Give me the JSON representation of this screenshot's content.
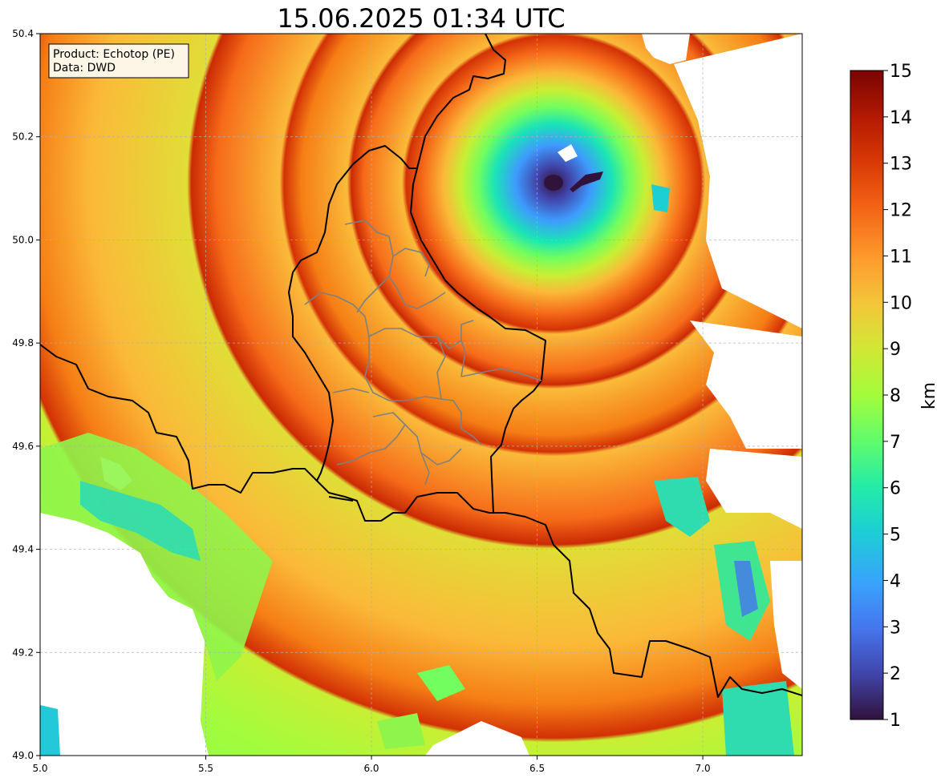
{
  "title": "15.06.2025 01:34 UTC",
  "info_box": {
    "product_line": "Product: Echotop (PE)",
    "data_line": "Data: DWD"
  },
  "map": {
    "lon_range": [
      5.0,
      7.3
    ],
    "lat_range": [
      49.0,
      50.4
    ],
    "x_ticks": [
      "5.0",
      "5.5",
      "6.0",
      "6.5",
      "7.0"
    ],
    "x_tick_values": [
      5.0,
      5.5,
      6.0,
      6.5,
      7.0
    ],
    "y_ticks": [
      "49.0",
      "49.2",
      "49.4",
      "49.6",
      "49.8",
      "50.0",
      "50.2",
      "50.4"
    ],
    "y_tick_values": [
      49.0,
      49.2,
      49.4,
      49.6,
      49.8,
      50.0,
      50.2,
      50.4
    ],
    "grid": "dashed gray",
    "radar_center": {
      "lon": 6.55,
      "lat": 50.11
    },
    "colormap": "turbo",
    "background_color": "#ffffff",
    "border_color": "#000000",
    "district_color": "#808080"
  },
  "colorbar": {
    "label": "km",
    "min": 1,
    "max": 15,
    "ticks": [
      "1",
      "2",
      "3",
      "4",
      "5",
      "6",
      "7",
      "8",
      "9",
      "10",
      "11",
      "12",
      "13",
      "14",
      "15"
    ],
    "tick_values": [
      1,
      2,
      3,
      4,
      5,
      6,
      7,
      8,
      9,
      10,
      11,
      12,
      13,
      14,
      15
    ]
  }
}
